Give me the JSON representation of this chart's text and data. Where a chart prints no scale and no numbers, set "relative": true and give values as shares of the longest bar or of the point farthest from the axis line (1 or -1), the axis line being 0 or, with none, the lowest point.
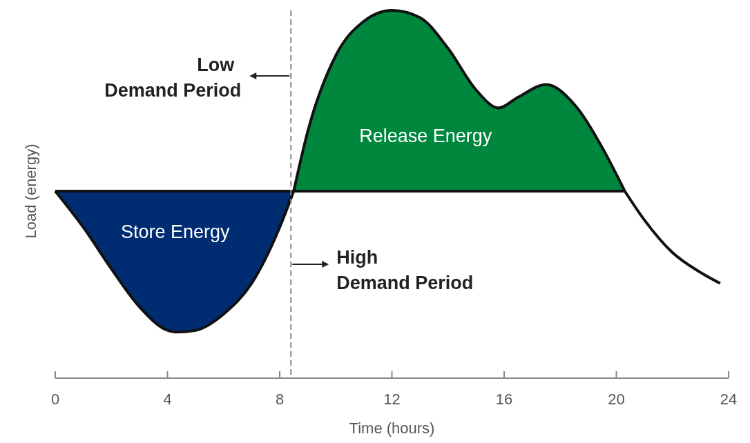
{
  "chart_data": {
    "type": "area",
    "relative": true,
    "xlabel": "Time (hours)",
    "ylabel": "Load (energy)",
    "xlim": [
      0,
      24
    ],
    "xticks": [
      0,
      4,
      8,
      12,
      16,
      20,
      24
    ],
    "series": [
      {
        "name": "Store Energy",
        "color": "#002d72",
        "x": [
          0,
          1,
          2,
          3,
          4,
          4.3,
          5,
          6,
          7,
          8,
          8.5
        ],
        "values": [
          0,
          -0.2,
          -0.43,
          -0.64,
          -0.77,
          -0.78,
          -0.77,
          -0.68,
          -0.51,
          -0.2,
          0
        ]
      },
      {
        "name": "Release Energy",
        "color": "#00873e",
        "x": [
          8.5,
          9,
          10,
          11,
          12,
          13,
          14,
          15,
          15.8,
          16.5,
          17.5,
          18.5,
          19.5,
          20.3
        ],
        "values": [
          0,
          0.33,
          0.75,
          0.94,
          1,
          0.96,
          0.79,
          0.56,
          0.46,
          0.52,
          0.59,
          0.48,
          0.24,
          0
        ]
      },
      {
        "type": "line",
        "color": "#111111",
        "x": [
          20.3,
          21,
          22,
          23,
          23.7
        ],
        "values": [
          0,
          -0.16,
          -0.34,
          -0.45,
          -0.51
        ]
      }
    ],
    "ref_lines": [
      {
        "axis": "y",
        "value": 0,
        "color": "#111111",
        "line_style": "solid"
      },
      {
        "axis": "x",
        "value": 8.4,
        "color": "#888888",
        "line_style": "dashed"
      }
    ],
    "annotations": [
      "Low\nDemand Period",
      "High\nDemand Period"
    ]
  }
}
